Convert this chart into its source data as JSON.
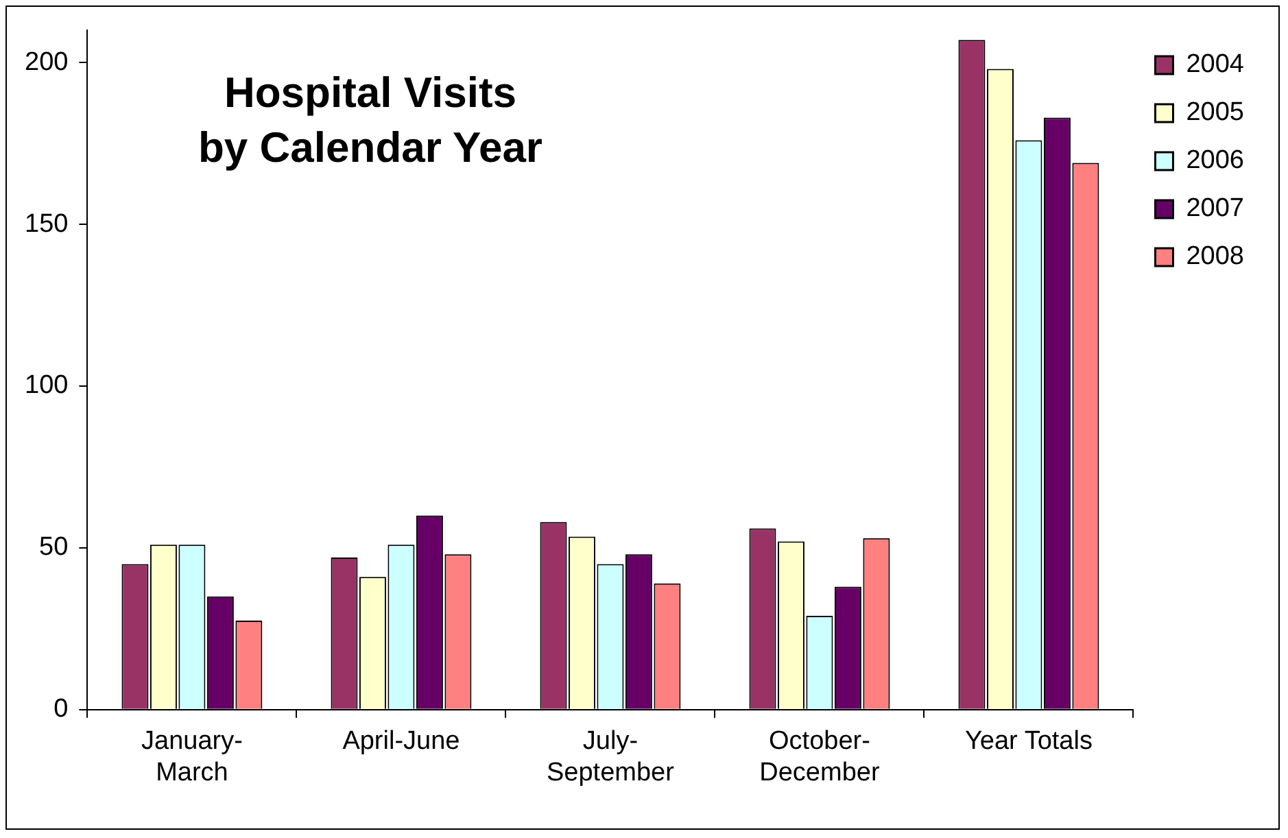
{
  "chart_data": {
    "type": "bar",
    "title": "Hospital Visits by Calendar Year",
    "categories": [
      "January-March",
      "April-June",
      "July-September",
      "October-December",
      "Year Totals"
    ],
    "series": [
      {
        "name": "2004",
        "color": "#993366",
        "values": [
          45,
          47,
          58,
          56,
          207
        ]
      },
      {
        "name": "2005",
        "color": "#ffffcc",
        "values": [
          51,
          41,
          53.5,
          52,
          198
        ]
      },
      {
        "name": "2006",
        "color": "#ccffff",
        "values": [
          51,
          51,
          45,
          29,
          176
        ]
      },
      {
        "name": "2007",
        "color": "#660066",
        "values": [
          35,
          60,
          48,
          38,
          183
        ]
      },
      {
        "name": "2008",
        "color": "#ff8080",
        "values": [
          27.5,
          48,
          39,
          53,
          169
        ]
      }
    ],
    "ylim": [
      0,
      210
    ],
    "yticks": [
      0,
      50,
      100,
      150,
      200
    ],
    "grid": false,
    "legend": "right"
  }
}
